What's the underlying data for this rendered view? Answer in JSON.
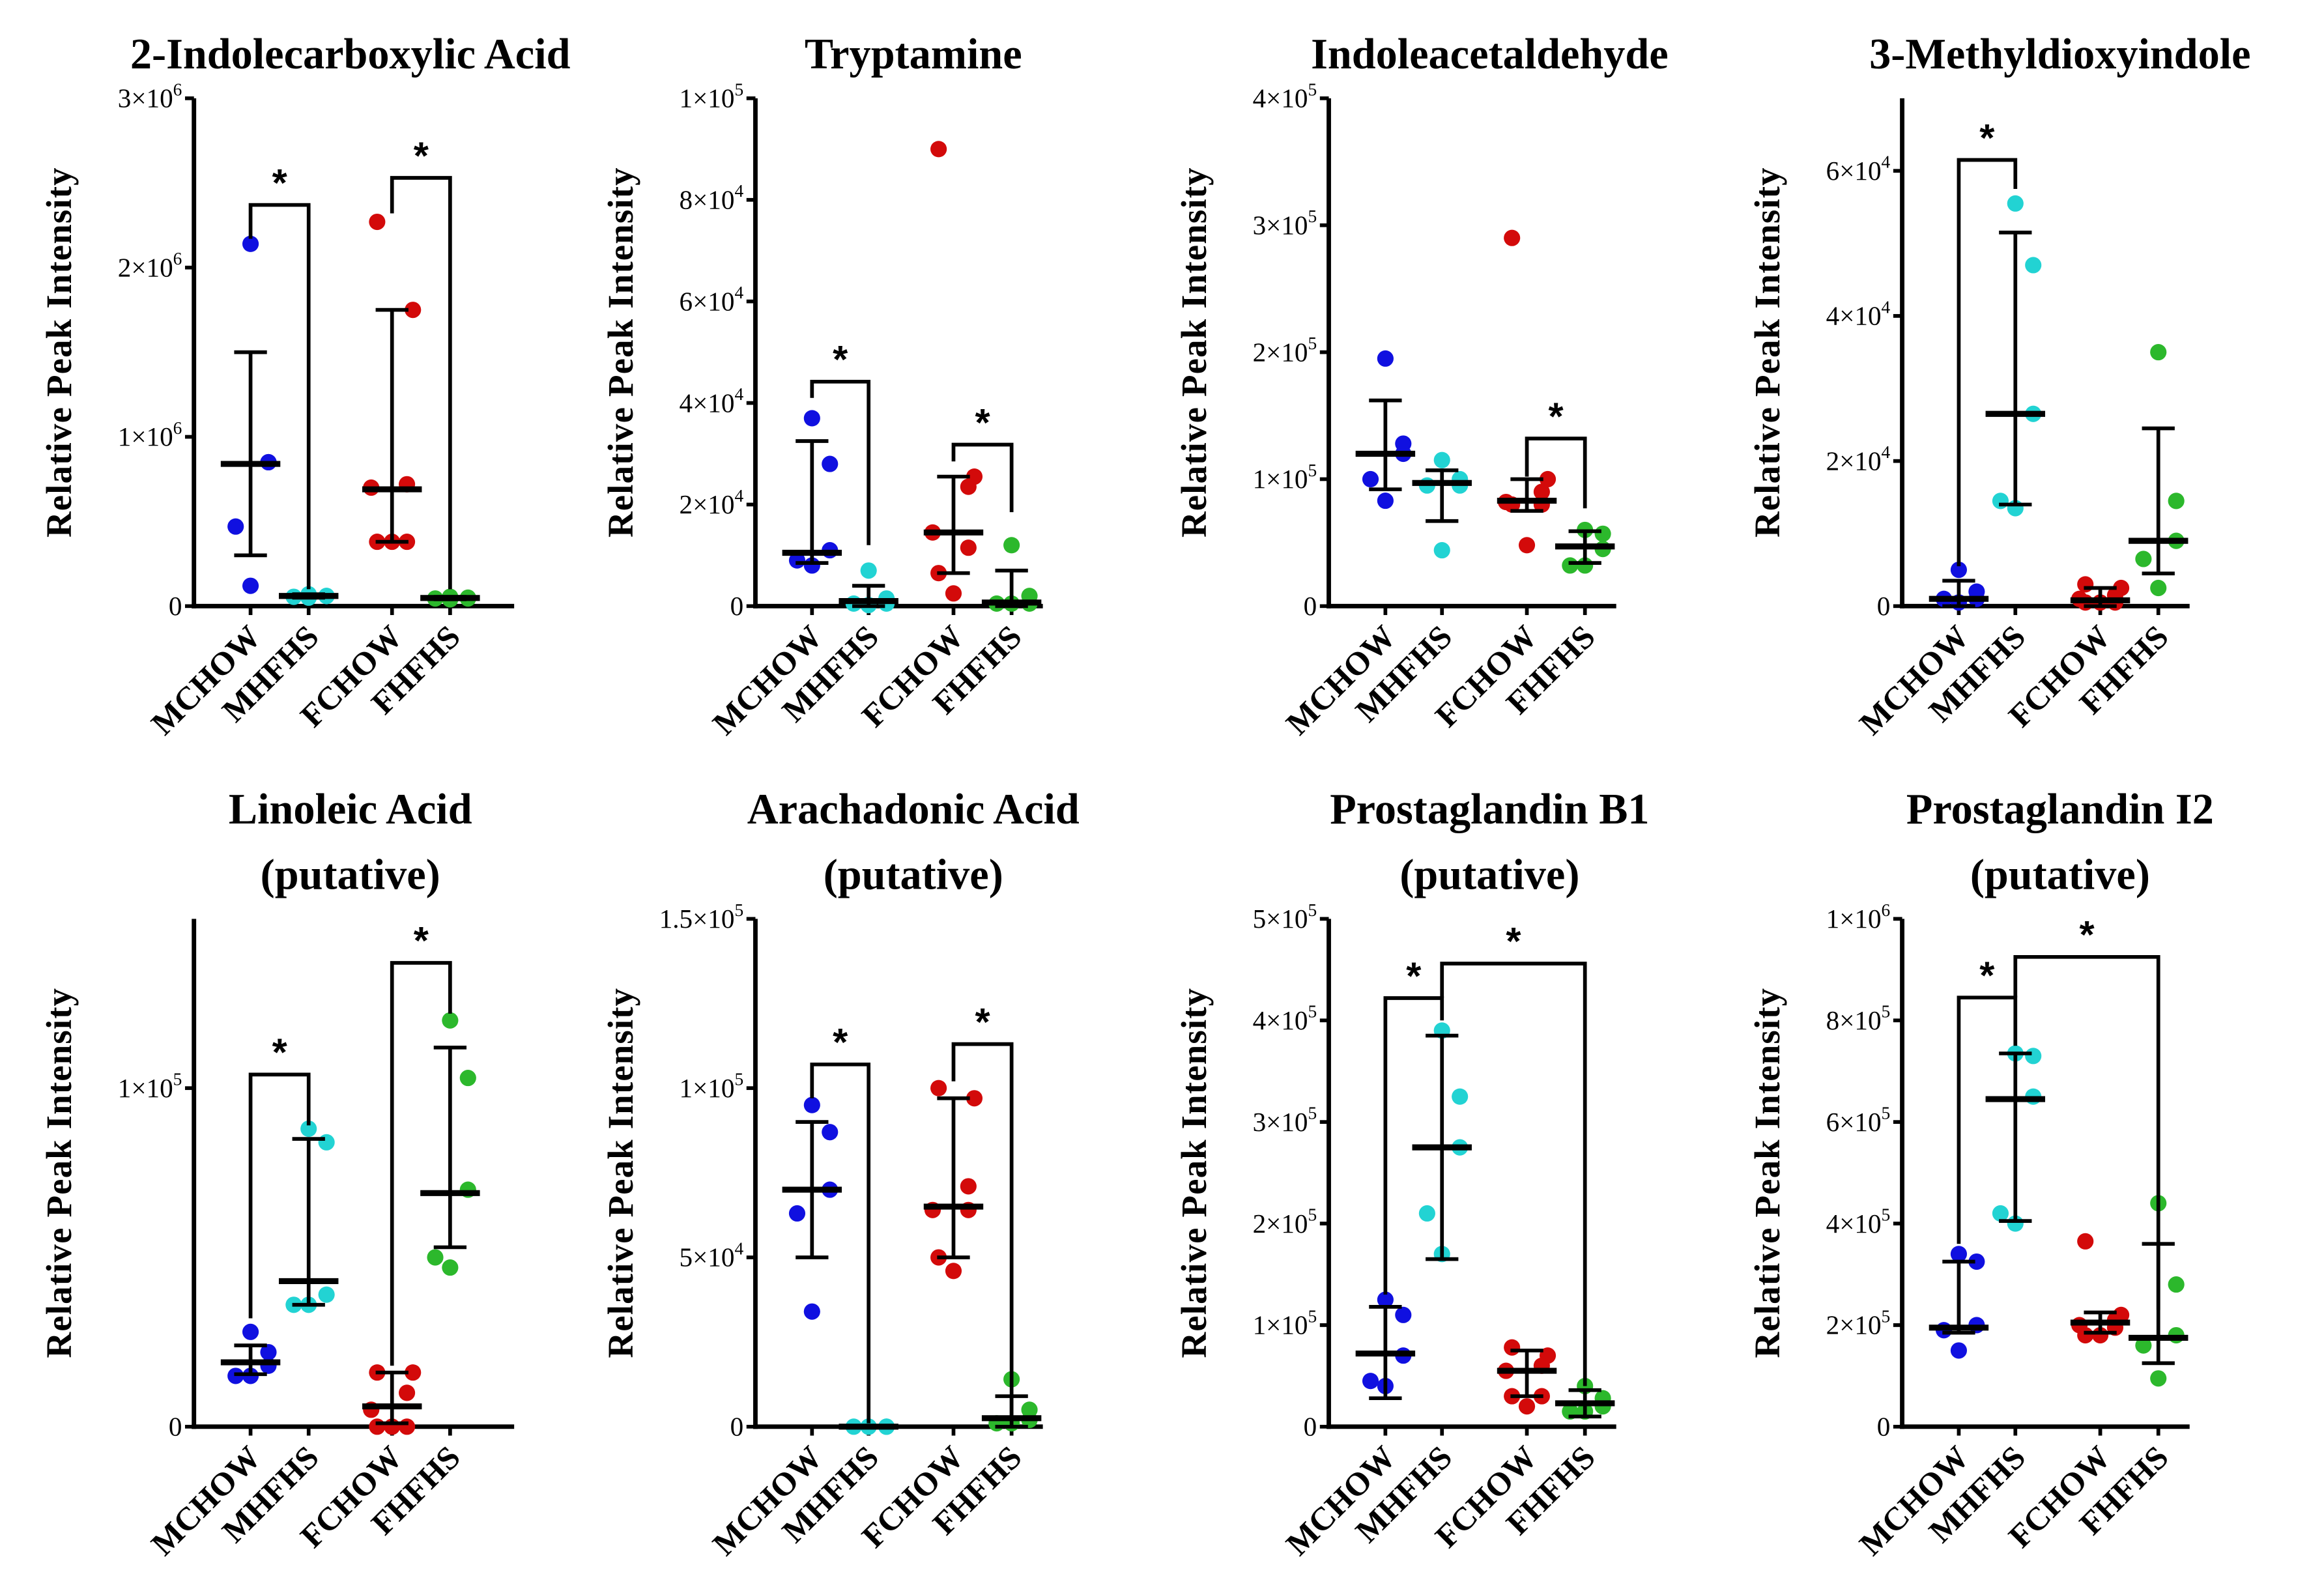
{
  "colors": {
    "MCHOW": "#1010e0",
    "MHFHS": "#22d3d3",
    "FCHOW": "#d30a0a",
    "FHFHS": "#2cb82c",
    "axis": "#000000"
  },
  "chart_data": [
    {
      "type": "scatter",
      "title": [
        "2-Indolecarboxylic Acid"
      ],
      "ylabel": "Relative Peak Intensity",
      "categories": [
        "MCHOW",
        "MHFHS",
        "FCHOW",
        "FHFHS"
      ],
      "ylim": [
        0,
        3000000
      ],
      "yticks": [
        {
          "value": 0,
          "label": "0",
          "sup": ""
        },
        {
          "value": 1000000,
          "label": "1×10",
          "sup": "6"
        },
        {
          "value": 2000000,
          "label": "2×10",
          "sup": "6"
        },
        {
          "value": 3000000,
          "label": "3×10",
          "sup": "6"
        }
      ],
      "groups": [
        {
          "points": [
            2140000,
            850000,
            850000,
            470000,
            120000
          ],
          "median": 840000,
          "err": [
            300000,
            1500000
          ]
        },
        {
          "points": [
            70000,
            60000,
            60000,
            55000,
            50000
          ],
          "median": 60000,
          "err": [
            50000,
            70000
          ]
        },
        {
          "points": [
            2270000,
            1750000,
            720000,
            700000,
            380000,
            380000,
            380000
          ],
          "median": 690000,
          "err": [
            380000,
            1750000
          ]
        },
        {
          "points": [
            55000,
            50000,
            45000,
            45000,
            40000
          ],
          "median": 48000,
          "err": [
            40000,
            55000
          ]
        }
      ],
      "brackets": [
        {
          "from": 0,
          "to": 1,
          "y": 2370000,
          "legs": [
            2170000,
            100000
          ],
          "label": "*"
        },
        {
          "from": 2,
          "to": 3,
          "y": 2530000,
          "legs": [
            2320000,
            100000
          ],
          "label": "*"
        }
      ]
    },
    {
      "type": "scatter",
      "title": [
        "Tryptamine"
      ],
      "ylabel": "Relative Peak Intensity",
      "categories": [
        "MCHOW",
        "MHFHS",
        "FCHOW",
        "FHFHS"
      ],
      "ylim": [
        0,
        100000
      ],
      "yticks": [
        {
          "value": 0,
          "label": "0",
          "sup": ""
        },
        {
          "value": 20000,
          "label": "2×10",
          "sup": "4"
        },
        {
          "value": 40000,
          "label": "4×10",
          "sup": "4"
        },
        {
          "value": 60000,
          "label": "6×10",
          "sup": "4"
        },
        {
          "value": 80000,
          "label": "8×10",
          "sup": "4"
        },
        {
          "value": 100000,
          "label": "1×10",
          "sup": "5"
        }
      ],
      "groups": [
        {
          "points": [
            37000,
            28000,
            11000,
            9000,
            8000
          ],
          "median": 10500,
          "err": [
            8500,
            32500
          ]
        },
        {
          "points": [
            7000,
            1500,
            500,
            500,
            200
          ],
          "median": 1000,
          "err": [
            0,
            4000
          ]
        },
        {
          "points": [
            90000,
            25500,
            23500,
            14500,
            11500,
            6500,
            2500
          ],
          "median": 14500,
          "err": [
            6500,
            25500
          ]
        },
        {
          "points": [
            12000,
            2000,
            500,
            500,
            500
          ],
          "median": 700,
          "err": [
            0,
            7000
          ]
        }
      ],
      "brackets": [
        {
          "from": 0,
          "to": 1,
          "y": 44200,
          "legs": [
            41000,
            12000
          ],
          "label": "*"
        },
        {
          "from": 2,
          "to": 3,
          "y": 31800,
          "legs": [
            28500,
            18500
          ],
          "label": "*"
        }
      ]
    },
    {
      "type": "scatter",
      "title": [
        "Indoleacetaldehyde"
      ],
      "ylabel": "Relative Peak Intensity",
      "categories": [
        "MCHOW",
        "MHFHS",
        "FCHOW",
        "FHFHS"
      ],
      "ylim": [
        0,
        400000
      ],
      "yticks": [
        {
          "value": 0,
          "label": "0",
          "sup": ""
        },
        {
          "value": 100000,
          "label": "1×10",
          "sup": "5"
        },
        {
          "value": 200000,
          "label": "2×10",
          "sup": "5"
        },
        {
          "value": 300000,
          "label": "3×10",
          "sup": "5"
        },
        {
          "value": 400000,
          "label": "4×10",
          "sup": "5"
        }
      ],
      "groups": [
        {
          "points": [
            195000,
            128000,
            120000,
            100000,
            83000
          ],
          "median": 120000,
          "err": [
            92000,
            162000
          ]
        },
        {
          "points": [
            115000,
            100000,
            95000,
            95000,
            44000
          ],
          "median": 97000,
          "err": [
            67000,
            107000
          ]
        },
        {
          "points": [
            290000,
            100000,
            90000,
            82000,
            80000,
            80000,
            48000
          ],
          "median": 83000,
          "err": [
            75000,
            100000
          ]
        },
        {
          "points": [
            60000,
            57000,
            45000,
            32000,
            32000
          ],
          "median": 47000,
          "err": [
            34000,
            59000
          ]
        }
      ],
      "brackets": [
        {
          "from": 2,
          "to": 3,
          "y": 132000,
          "legs": [
            102000,
            77000
          ],
          "label": "*"
        }
      ]
    },
    {
      "type": "scatter",
      "title": [
        "3-Methyldioxyindole"
      ],
      "ylabel": "Relative Peak Intensity",
      "categories": [
        "MCHOW",
        "MHFHS",
        "FCHOW",
        "FHFHS"
      ],
      "ylim": [
        0,
        70000
      ],
      "yticks": [
        {
          "value": 0,
          "label": "0",
          "sup": ""
        },
        {
          "value": 20000,
          "label": "2×10",
          "sup": "4"
        },
        {
          "value": 40000,
          "label": "4×10",
          "sup": "4"
        },
        {
          "value": 60000,
          "label": "6×10",
          "sup": "4"
        }
      ],
      "groups": [
        {
          "points": [
            5000,
            2000,
            1000,
            1000,
            500
          ],
          "median": 1000,
          "err": [
            0,
            3500
          ]
        },
        {
          "points": [
            55500,
            47000,
            26500,
            14500,
            13500
          ],
          "median": 26500,
          "err": [
            14000,
            51500
          ]
        },
        {
          "points": [
            3000,
            2500,
            1500,
            1000,
            500,
            500,
            500
          ],
          "median": 800,
          "err": [
            0,
            2500
          ]
        },
        {
          "points": [
            35000,
            14500,
            9000,
            6500,
            2500
          ],
          "median": 9000,
          "err": [
            4500,
            24500
          ]
        }
      ],
      "brackets": [
        {
          "from": 0,
          "to": 1,
          "y": 61500,
          "legs": [
            5500,
            57500
          ],
          "label": "*"
        }
      ]
    },
    {
      "type": "scatter",
      "title": [
        "Linoleic Acid",
        "(putative)"
      ],
      "ylabel": "Relative Peak Intensity",
      "categories": [
        "MCHOW",
        "MHFHS",
        "FCHOW",
        "FHFHS"
      ],
      "ylim": [
        0,
        150000
      ],
      "yticks": [
        {
          "value": 0,
          "label": "0",
          "sup": ""
        },
        {
          "value": 100000,
          "label": "1×10",
          "sup": "5"
        }
      ],
      "groups": [
        {
          "points": [
            28000,
            22000,
            18000,
            15000,
            15000
          ],
          "median": 19000,
          "err": [
            15500,
            24000
          ]
        },
        {
          "points": [
            88000,
            84000,
            39000,
            36000,
            36000
          ],
          "median": 43000,
          "err": [
            36000,
            85000
          ]
        },
        {
          "points": [
            16000,
            16000,
            10000,
            5000,
            0,
            0,
            0
          ],
          "median": 6000,
          "err": [
            1000,
            16000
          ]
        },
        {
          "points": [
            120000,
            103000,
            70000,
            50000,
            47000
          ],
          "median": 69000,
          "err": [
            53000,
            112000
          ]
        }
      ],
      "brackets": [
        {
          "from": 0,
          "to": 1,
          "y": 104000,
          "legs": [
            32000,
            89000
          ],
          "label": "*"
        },
        {
          "from": 2,
          "to": 3,
          "y": 137000,
          "legs": [
            18000,
            122000
          ],
          "label": "*"
        }
      ]
    },
    {
      "type": "scatter",
      "title": [
        "Arachadonic Acid",
        "(putative)"
      ],
      "ylabel": "Relative Peak Intensity",
      "categories": [
        "MCHOW",
        "MHFHS",
        "FCHOW",
        "FHFHS"
      ],
      "ylim": [
        0,
        150000
      ],
      "yticks": [
        {
          "value": 0,
          "label": "0",
          "sup": ""
        },
        {
          "value": 50000,
          "label": "5×10",
          "sup": "4"
        },
        {
          "value": 100000,
          "label": "1×10",
          "sup": "5"
        },
        {
          "value": 150000,
          "label": "1.5×10",
          "sup": "5"
        }
      ],
      "groups": [
        {
          "points": [
            95000,
            87000,
            70000,
            63000,
            34000
          ],
          "median": 70000,
          "err": [
            50000,
            90000
          ]
        },
        {
          "points": [
            0,
            0,
            0,
            0,
            0
          ],
          "median": 0,
          "err": [
            0,
            0
          ]
        },
        {
          "points": [
            100000,
            97000,
            71000,
            64000,
            64000,
            50000,
            46000
          ],
          "median": 65000,
          "err": [
            50000,
            97000
          ]
        },
        {
          "points": [
            14000,
            5000,
            2000,
            1000,
            1000
          ],
          "median": 2500,
          "err": [
            0,
            9000
          ]
        }
      ],
      "brackets": [
        {
          "from": 0,
          "to": 1,
          "y": 107000,
          "legs": [
            97000,
            1000
          ],
          "label": "*"
        },
        {
          "from": 2,
          "to": 3,
          "y": 113000,
          "legs": [
            102000,
            2000
          ],
          "label": "*"
        }
      ]
    },
    {
      "type": "scatter",
      "title": [
        "Prostaglandin B1",
        "(putative)"
      ],
      "ylabel": "Relative Peak Intensity",
      "categories": [
        "MCHOW",
        "MHFHS",
        "FCHOW",
        "FHFHS"
      ],
      "ylim": [
        0,
        500000
      ],
      "yticks": [
        {
          "value": 0,
          "label": "0",
          "sup": ""
        },
        {
          "value": 100000,
          "label": "1×10",
          "sup": "5"
        },
        {
          "value": 200000,
          "label": "2×10",
          "sup": "5"
        },
        {
          "value": 300000,
          "label": "3×10",
          "sup": "5"
        },
        {
          "value": 400000,
          "label": "4×10",
          "sup": "5"
        },
        {
          "value": 500000,
          "label": "5×10",
          "sup": "5"
        }
      ],
      "groups": [
        {
          "points": [
            125000,
            110000,
            70000,
            45000,
            40000
          ],
          "median": 72000,
          "err": [
            28000,
            118000
          ]
        },
        {
          "points": [
            390000,
            325000,
            275000,
            210000,
            170000
          ],
          "median": 275000,
          "err": [
            165000,
            385000
          ]
        },
        {
          "points": [
            78000,
            70000,
            60000,
            55000,
            30000,
            30000,
            20000
          ],
          "median": 55000,
          "err": [
            30000,
            75000
          ]
        },
        {
          "points": [
            40000,
            28000,
            20000,
            15000,
            15000
          ],
          "median": 23000,
          "err": [
            10000,
            36000
          ]
        }
      ],
      "brackets": [
        {
          "from": 0,
          "to": 1,
          "y": 422000,
          "legs": [
            130000,
            400000
          ],
          "label": "*"
        },
        {
          "from": 1,
          "to": 3,
          "y": 456000,
          "legs": [
            422000,
            40000
          ],
          "label": "*"
        }
      ]
    },
    {
      "type": "scatter",
      "title": [
        "Prostaglandin I2",
        "(putative)"
      ],
      "ylabel": "Relative Peak Intensity",
      "categories": [
        "MCHOW",
        "MHFHS",
        "FCHOW",
        "FHFHS"
      ],
      "ylim": [
        0,
        1000000
      ],
      "yticks": [
        {
          "value": 0,
          "label": "0",
          "sup": ""
        },
        {
          "value": 200000,
          "label": "2×10",
          "sup": "5"
        },
        {
          "value": 400000,
          "label": "4×10",
          "sup": "5"
        },
        {
          "value": 600000,
          "label": "6×10",
          "sup": "5"
        },
        {
          "value": 800000,
          "label": "8×10",
          "sup": "5"
        },
        {
          "value": 1000000,
          "label": "1×10",
          "sup": "6"
        }
      ],
      "groups": [
        {
          "points": [
            340000,
            325000,
            200000,
            190000,
            150000
          ],
          "median": 195000,
          "err": [
            185000,
            325000
          ]
        },
        {
          "points": [
            735000,
            730000,
            650000,
            420000,
            400000
          ],
          "median": 645000,
          "err": [
            405000,
            735000
          ]
        },
        {
          "points": [
            365000,
            220000,
            210000,
            200000,
            195000,
            180000,
            180000
          ],
          "median": 205000,
          "err": [
            185000,
            225000
          ]
        },
        {
          "points": [
            440000,
            280000,
            180000,
            160000,
            95000
          ],
          "median": 175000,
          "err": [
            125000,
            360000
          ]
        }
      ],
      "brackets": [
        {
          "from": 0,
          "to": 1,
          "y": 845000,
          "legs": [
            360000,
            750000
          ],
          "label": "*"
        },
        {
          "from": 1,
          "to": 3,
          "y": 925000,
          "legs": [
            845000,
            230000
          ],
          "label": "*"
        }
      ]
    }
  ]
}
